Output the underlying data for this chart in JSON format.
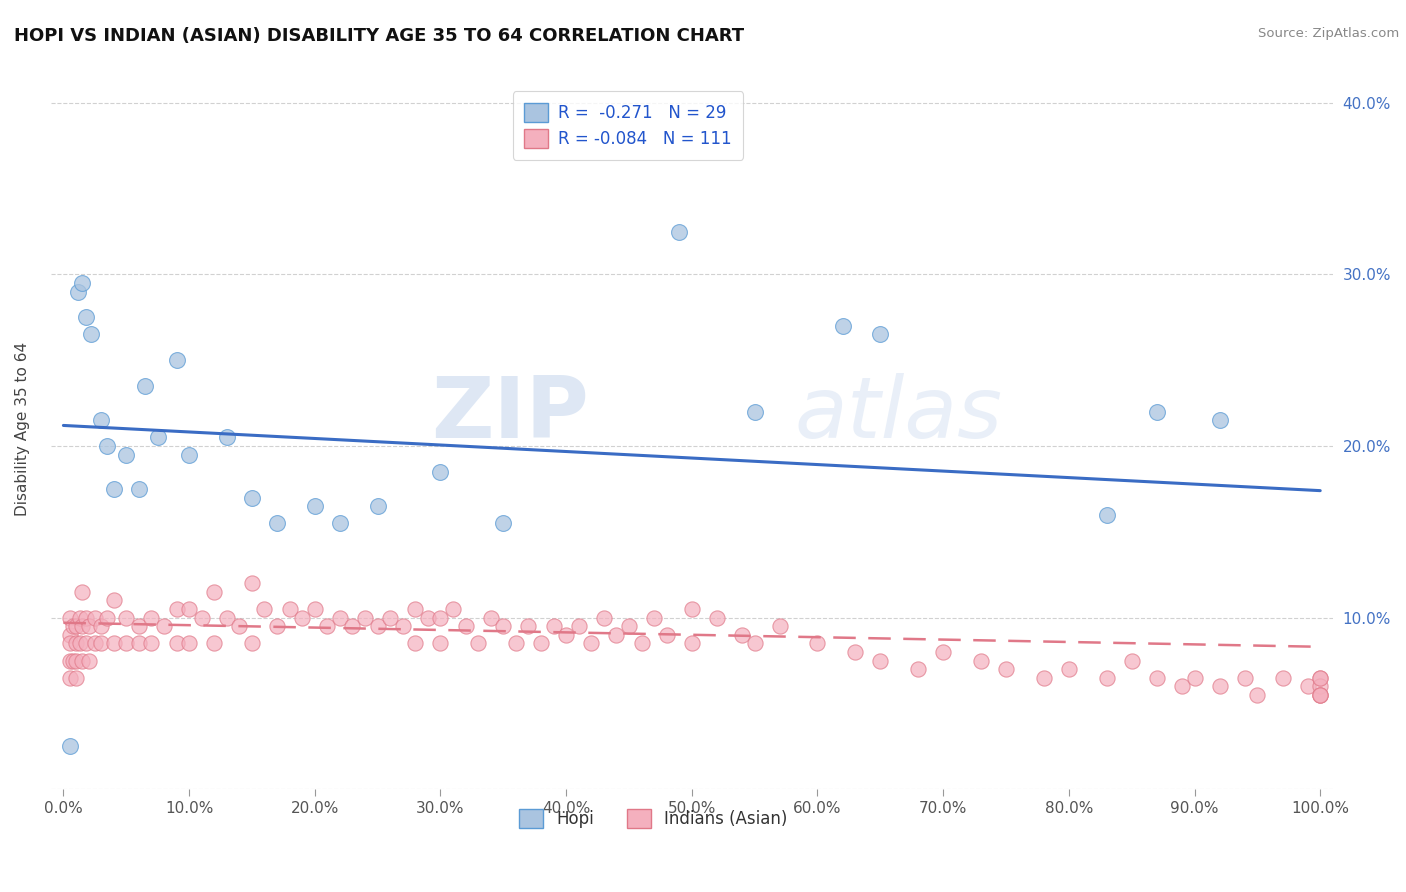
{
  "title": "HOPI VS INDIAN (ASIAN) DISABILITY AGE 35 TO 64 CORRELATION CHART",
  "source_text": "Source: ZipAtlas.com",
  "ylabel": "Disability Age 35 to 64",
  "xlim": [
    -0.01,
    1.01
  ],
  "ylim": [
    0.0,
    0.42
  ],
  "xticks": [
    0.0,
    0.1,
    0.2,
    0.3,
    0.4,
    0.5,
    0.6,
    0.7,
    0.8,
    0.9,
    1.0
  ],
  "xticklabels": [
    "0.0%",
    "10.0%",
    "20.0%",
    "30.0%",
    "40.0%",
    "50.0%",
    "60.0%",
    "70.0%",
    "80.0%",
    "90.0%",
    "100.0%"
  ],
  "yticks_right": [
    0.1,
    0.2,
    0.3,
    0.4
  ],
  "yticklabels_right": [
    "10.0%",
    "20.0%",
    "30.0%",
    "40.0%"
  ],
  "hopi_color": "#aac4e0",
  "hopi_edge_color": "#5b9bd5",
  "indian_color": "#f4b0be",
  "indian_edge_color": "#e07888",
  "hopi_line_color": "#3a6cc4",
  "indian_line_color": "#e07888",
  "legend_label1": "R =  -0.271   N = 29",
  "legend_label2": "R = -0.084   N = 111",
  "watermark_zip": "ZIP",
  "watermark_atlas": "atlas",
  "hopi_x": [
    0.005,
    0.012,
    0.015,
    0.018,
    0.022,
    0.03,
    0.035,
    0.04,
    0.05,
    0.06,
    0.065,
    0.075,
    0.09,
    0.1,
    0.13,
    0.15,
    0.17,
    0.2,
    0.22,
    0.25,
    0.3,
    0.35,
    0.49,
    0.55,
    0.62,
    0.65,
    0.83,
    0.87,
    0.92
  ],
  "hopi_y": [
    0.025,
    0.29,
    0.295,
    0.275,
    0.265,
    0.215,
    0.2,
    0.175,
    0.195,
    0.175,
    0.235,
    0.205,
    0.25,
    0.195,
    0.205,
    0.17,
    0.155,
    0.165,
    0.155,
    0.165,
    0.185,
    0.155,
    0.325,
    0.22,
    0.27,
    0.265,
    0.16,
    0.22,
    0.215
  ],
  "indian_x": [
    0.005,
    0.005,
    0.005,
    0.005,
    0.005,
    0.008,
    0.008,
    0.01,
    0.01,
    0.01,
    0.01,
    0.013,
    0.013,
    0.015,
    0.015,
    0.015,
    0.018,
    0.018,
    0.02,
    0.02,
    0.025,
    0.025,
    0.03,
    0.03,
    0.035,
    0.04,
    0.04,
    0.05,
    0.05,
    0.06,
    0.06,
    0.07,
    0.07,
    0.08,
    0.09,
    0.09,
    0.1,
    0.1,
    0.11,
    0.12,
    0.12,
    0.13,
    0.14,
    0.15,
    0.15,
    0.16,
    0.17,
    0.18,
    0.19,
    0.2,
    0.21,
    0.22,
    0.23,
    0.24,
    0.25,
    0.26,
    0.27,
    0.28,
    0.28,
    0.29,
    0.3,
    0.3,
    0.31,
    0.32,
    0.33,
    0.34,
    0.35,
    0.36,
    0.37,
    0.38,
    0.39,
    0.4,
    0.41,
    0.42,
    0.43,
    0.44,
    0.45,
    0.46,
    0.47,
    0.48,
    0.5,
    0.5,
    0.52,
    0.54,
    0.55,
    0.57,
    0.6,
    0.63,
    0.65,
    0.68,
    0.7,
    0.73,
    0.75,
    0.78,
    0.8,
    0.83,
    0.85,
    0.87,
    0.89,
    0.9,
    0.92,
    0.94,
    0.95,
    0.97,
    0.99,
    1.0,
    1.0,
    1.0,
    1.0,
    1.0,
    1.0
  ],
  "indian_y": [
    0.1,
    0.09,
    0.085,
    0.075,
    0.065,
    0.095,
    0.075,
    0.095,
    0.085,
    0.075,
    0.065,
    0.1,
    0.085,
    0.115,
    0.095,
    0.075,
    0.1,
    0.085,
    0.095,
    0.075,
    0.1,
    0.085,
    0.095,
    0.085,
    0.1,
    0.11,
    0.085,
    0.1,
    0.085,
    0.095,
    0.085,
    0.1,
    0.085,
    0.095,
    0.105,
    0.085,
    0.105,
    0.085,
    0.1,
    0.115,
    0.085,
    0.1,
    0.095,
    0.12,
    0.085,
    0.105,
    0.095,
    0.105,
    0.1,
    0.105,
    0.095,
    0.1,
    0.095,
    0.1,
    0.095,
    0.1,
    0.095,
    0.105,
    0.085,
    0.1,
    0.1,
    0.085,
    0.105,
    0.095,
    0.085,
    0.1,
    0.095,
    0.085,
    0.095,
    0.085,
    0.095,
    0.09,
    0.095,
    0.085,
    0.1,
    0.09,
    0.095,
    0.085,
    0.1,
    0.09,
    0.105,
    0.085,
    0.1,
    0.09,
    0.085,
    0.095,
    0.085,
    0.08,
    0.075,
    0.07,
    0.08,
    0.075,
    0.07,
    0.065,
    0.07,
    0.065,
    0.075,
    0.065,
    0.06,
    0.065,
    0.06,
    0.065,
    0.055,
    0.065,
    0.06,
    0.065,
    0.055,
    0.06,
    0.055,
    0.065,
    0.055
  ],
  "hopi_line_x0": 0.0,
  "hopi_line_y0": 0.212,
  "hopi_line_x1": 1.0,
  "hopi_line_y1": 0.174,
  "indian_line_x0": 0.0,
  "indian_line_y0": 0.097,
  "indian_line_x1": 1.0,
  "indian_line_y1": 0.083
}
